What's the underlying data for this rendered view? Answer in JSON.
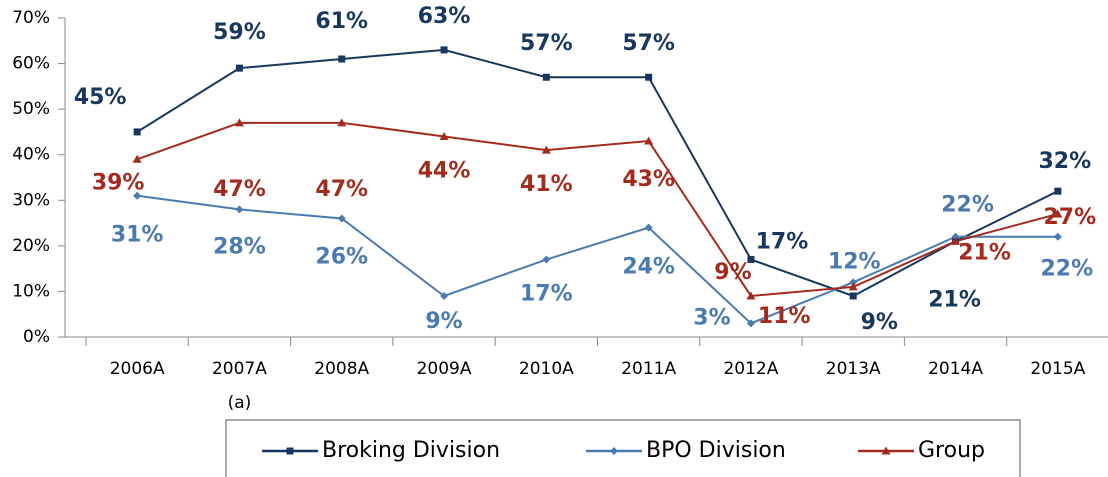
{
  "chart_data": {
    "type": "line",
    "categories": [
      "2006A",
      "2007A",
      "2008A",
      "2009A",
      "2010A",
      "2011A",
      "2012A",
      "2013A",
      "2014A",
      "2015A"
    ],
    "category_note": "(a)",
    "ylim": [
      0,
      70
    ],
    "yticks": [
      {
        "value": 0,
        "label": "0%"
      },
      {
        "value": 10,
        "label": "10%"
      },
      {
        "value": 20,
        "label": "20%"
      },
      {
        "value": 30,
        "label": "30%"
      },
      {
        "value": 40,
        "label": "40%"
      },
      {
        "value": 50,
        "label": "50%"
      },
      {
        "value": 60,
        "label": "60%"
      },
      {
        "value": 70,
        "label": "70%"
      }
    ],
    "grid": false,
    "legend": "bottom",
    "series": [
      {
        "name": "Broking Division",
        "color": "#17375e",
        "marker": "square",
        "values": [
          45,
          59,
          61,
          63,
          57,
          57,
          17,
          9,
          21,
          32
        ],
        "value_labels": [
          "45%",
          "59%",
          "61%",
          "63%",
          "57%",
          "57%",
          "17%",
          "9%",
          "21%",
          "32%"
        ]
      },
      {
        "name": "BPO Division",
        "color": "#4a7ab0",
        "marker": "diamond",
        "values": [
          31,
          28,
          26,
          9,
          17,
          24,
          3,
          12,
          22,
          22
        ],
        "value_labels": [
          "31%",
          "28%",
          "26%",
          "9%",
          "17%",
          "24%",
          "3%",
          "12%",
          "22%",
          "22%"
        ]
      },
      {
        "name": "Group",
        "color": "#a52a1e",
        "marker": "triangle",
        "values": [
          39,
          47,
          47,
          44,
          41,
          43,
          9,
          11,
          21,
          27
        ],
        "value_labels": [
          "39%",
          "47%",
          "47%",
          "44%",
          "41%",
          "43%",
          "9%",
          "11%",
          "21%",
          "27%"
        ]
      }
    ]
  }
}
